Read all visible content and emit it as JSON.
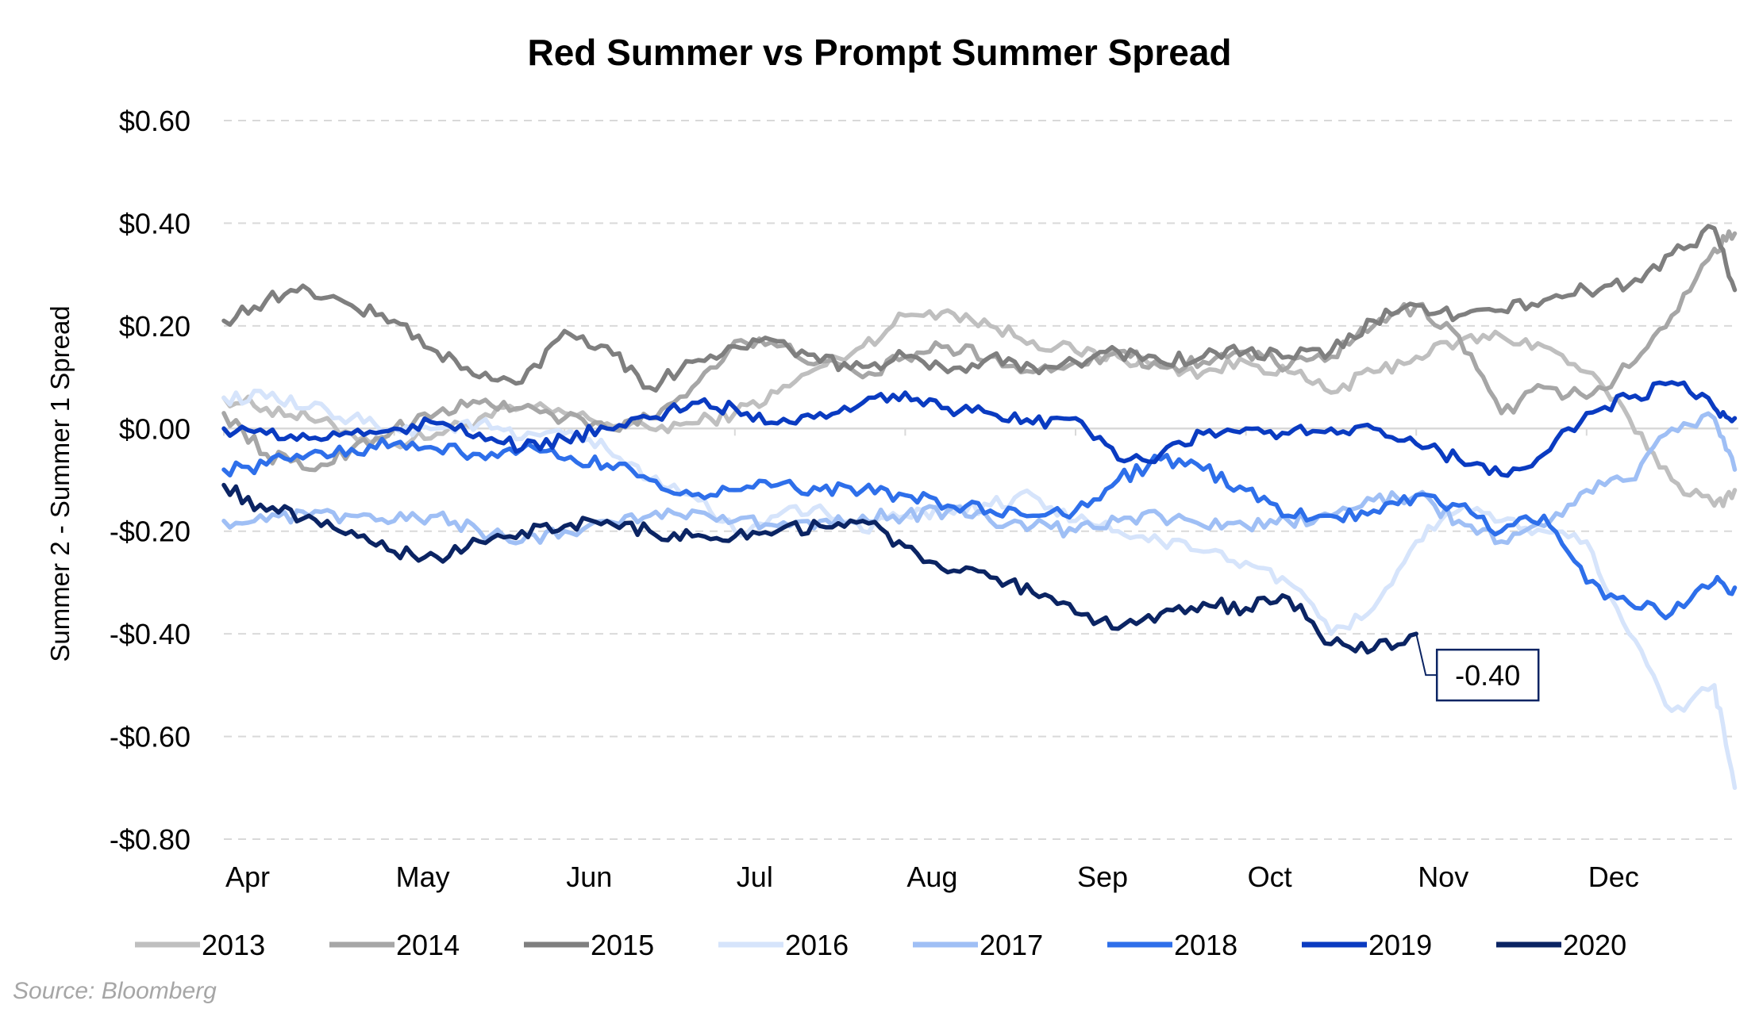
{
  "chart_data": {
    "type": "line",
    "title": "Red Summer vs Prompt Summer Spread",
    "ylabel": "Summer 2 - Summer 1 Spread",
    "xlabel": "",
    "x_tick_labels": [
      "Apr",
      "May",
      "Jun",
      "Jul",
      "Aug",
      "Sep",
      "Oct",
      "Nov",
      "Dec"
    ],
    "y_tick_labels": [
      "$0.60",
      "$0.40",
      "$0.20",
      "$0.00",
      "-$0.20",
      "-$0.40",
      "-$0.60",
      "-$0.80"
    ],
    "y_tick_values": [
      0.6,
      0.4,
      0.2,
      0.0,
      -0.2,
      -0.4,
      -0.6,
      -0.8
    ],
    "ylim": [
      -0.8,
      0.6
    ],
    "x_axis_months": [
      "Apr",
      "May",
      "Jun",
      "Jul",
      "Aug",
      "Sep",
      "Oct",
      "Nov",
      "Dec"
    ],
    "grid": "horizontal dashed",
    "legend_position": "bottom",
    "annotation": {
      "text": "-0.40",
      "series": "2020",
      "x_month": 7.0,
      "value": -0.4
    },
    "source": "Source: Bloomberg",
    "series": [
      {
        "name": "2013",
        "color": "#bfbfbf",
        "points": [
          [
            0,
            0.06
          ],
          [
            0.25,
            0.04
          ],
          [
            0.5,
            0.02
          ],
          [
            0.75,
            -0.01
          ],
          [
            1,
            -0.03
          ],
          [
            1.25,
            -0.01
          ],
          [
            1.5,
            0.02
          ],
          [
            1.75,
            0.04
          ],
          [
            2,
            0.03
          ],
          [
            2.25,
            0.01
          ],
          [
            2.5,
            0.0
          ],
          [
            2.75,
            0.01
          ],
          [
            3,
            0.03
          ],
          [
            3.25,
            0.07
          ],
          [
            3.5,
            0.12
          ],
          [
            3.75,
            0.16
          ],
          [
            4,
            0.22
          ],
          [
            4.25,
            0.23
          ],
          [
            4.5,
            0.2
          ],
          [
            4.75,
            0.17
          ],
          [
            5,
            0.15
          ],
          [
            5.25,
            0.14
          ],
          [
            5.5,
            0.12
          ],
          [
            5.75,
            0.11
          ],
          [
            6,
            0.13
          ],
          [
            6.25,
            0.11
          ],
          [
            6.5,
            0.07
          ],
          [
            6.75,
            0.11
          ],
          [
            7,
            0.14
          ],
          [
            7.25,
            0.17
          ],
          [
            7.5,
            0.18
          ],
          [
            7.75,
            0.16
          ],
          [
            8,
            0.11
          ],
          [
            8.25,
            0.02
          ],
          [
            8.5,
            -0.1
          ],
          [
            8.75,
            -0.15
          ],
          [
            8.87,
            -0.12
          ]
        ]
      },
      {
        "name": "2014",
        "color": "#a6a6a6",
        "points": [
          [
            0,
            0.03
          ],
          [
            0.25,
            -0.05
          ],
          [
            0.5,
            -0.08
          ],
          [
            0.75,
            -0.04
          ],
          [
            1,
            0.0
          ],
          [
            1.25,
            0.03
          ],
          [
            1.5,
            0.05
          ],
          [
            1.75,
            0.04
          ],
          [
            2,
            0.02
          ],
          [
            2.25,
            0.0
          ],
          [
            2.5,
            0.02
          ],
          [
            2.75,
            0.08
          ],
          [
            3,
            0.17
          ],
          [
            3.25,
            0.16
          ],
          [
            3.5,
            0.13
          ],
          [
            3.75,
            0.1
          ],
          [
            4,
            0.14
          ],
          [
            4.25,
            0.16
          ],
          [
            4.5,
            0.14
          ],
          [
            4.75,
            0.11
          ],
          [
            5,
            0.13
          ],
          [
            5.25,
            0.15
          ],
          [
            5.5,
            0.12
          ],
          [
            5.75,
            0.13
          ],
          [
            6,
            0.15
          ],
          [
            6.25,
            0.12
          ],
          [
            6.5,
            0.14
          ],
          [
            6.75,
            0.2
          ],
          [
            7,
            0.24
          ],
          [
            7.25,
            0.18
          ],
          [
            7.5,
            0.03
          ],
          [
            7.75,
            0.08
          ],
          [
            8,
            0.06
          ],
          [
            8.25,
            0.12
          ],
          [
            8.5,
            0.22
          ],
          [
            8.75,
            0.35
          ],
          [
            8.87,
            0.38
          ]
        ]
      },
      {
        "name": "2015",
        "color": "#7f7f7f",
        "points": [
          [
            0,
            0.21
          ],
          [
            0.25,
            0.25
          ],
          [
            0.5,
            0.27
          ],
          [
            0.75,
            0.24
          ],
          [
            1,
            0.21
          ],
          [
            1.25,
            0.15
          ],
          [
            1.5,
            0.1
          ],
          [
            1.75,
            0.09
          ],
          [
            2,
            0.19
          ],
          [
            2.25,
            0.16
          ],
          [
            2.5,
            0.08
          ],
          [
            2.75,
            0.13
          ],
          [
            3,
            0.16
          ],
          [
            3.25,
            0.17
          ],
          [
            3.5,
            0.13
          ],
          [
            3.75,
            0.12
          ],
          [
            4,
            0.14
          ],
          [
            4.25,
            0.11
          ],
          [
            4.5,
            0.14
          ],
          [
            4.75,
            0.12
          ],
          [
            5,
            0.13
          ],
          [
            5.25,
            0.15
          ],
          [
            5.5,
            0.13
          ],
          [
            5.75,
            0.14
          ],
          [
            6,
            0.15
          ],
          [
            6.25,
            0.14
          ],
          [
            6.5,
            0.15
          ],
          [
            6.75,
            0.21
          ],
          [
            7,
            0.24
          ],
          [
            7.25,
            0.22
          ],
          [
            7.5,
            0.23
          ],
          [
            7.75,
            0.25
          ],
          [
            8,
            0.27
          ],
          [
            8.25,
            0.28
          ],
          [
            8.5,
            0.34
          ],
          [
            8.75,
            0.39
          ],
          [
            8.87,
            0.27
          ]
        ]
      },
      {
        "name": "2016",
        "color": "#d6e4fb",
        "points": [
          [
            0,
            0.06
          ],
          [
            0.25,
            0.06
          ],
          [
            0.5,
            0.04
          ],
          [
            0.75,
            0.02
          ],
          [
            1,
            0.0
          ],
          [
            1.25,
            0.0
          ],
          [
            1.5,
            0.01
          ],
          [
            1.75,
            -0.02
          ],
          [
            2,
            -0.01
          ],
          [
            2.25,
            -0.04
          ],
          [
            2.5,
            -0.1
          ],
          [
            2.75,
            -0.13
          ],
          [
            3,
            -0.2
          ],
          [
            3.25,
            -0.17
          ],
          [
            3.5,
            -0.15
          ],
          [
            3.75,
            -0.2
          ],
          [
            4,
            -0.17
          ],
          [
            4.25,
            -0.16
          ],
          [
            4.5,
            -0.15
          ],
          [
            4.75,
            -0.13
          ],
          [
            5,
            -0.18
          ],
          [
            5.25,
            -0.2
          ],
          [
            5.5,
            -0.22
          ],
          [
            5.75,
            -0.24
          ],
          [
            6,
            -0.26
          ],
          [
            6.25,
            -0.3
          ],
          [
            6.5,
            -0.4
          ],
          [
            6.75,
            -0.35
          ],
          [
            7,
            -0.22
          ],
          [
            7.25,
            -0.16
          ],
          [
            7.5,
            -0.18
          ],
          [
            7.75,
            -0.2
          ],
          [
            8,
            -0.22
          ],
          [
            8.25,
            -0.4
          ],
          [
            8.5,
            -0.55
          ],
          [
            8.75,
            -0.5
          ],
          [
            8.87,
            -0.7
          ]
        ]
      },
      {
        "name": "2017",
        "color": "#9fbff5",
        "points": [
          [
            0,
            -0.18
          ],
          [
            0.25,
            -0.18
          ],
          [
            0.5,
            -0.17
          ],
          [
            0.75,
            -0.17
          ],
          [
            1,
            -0.18
          ],
          [
            1.25,
            -0.17
          ],
          [
            1.5,
            -0.2
          ],
          [
            1.75,
            -0.22
          ],
          [
            2,
            -0.2
          ],
          [
            2.25,
            -0.18
          ],
          [
            2.5,
            -0.17
          ],
          [
            2.75,
            -0.16
          ],
          [
            3,
            -0.18
          ],
          [
            3.25,
            -0.19
          ],
          [
            3.5,
            -0.18
          ],
          [
            3.75,
            -0.17
          ],
          [
            4,
            -0.17
          ],
          [
            4.25,
            -0.16
          ],
          [
            4.5,
            -0.18
          ],
          [
            4.75,
            -0.19
          ],
          [
            5,
            -0.2
          ],
          [
            5.25,
            -0.18
          ],
          [
            5.5,
            -0.17
          ],
          [
            5.75,
            -0.19
          ],
          [
            6,
            -0.19
          ],
          [
            6.25,
            -0.18
          ],
          [
            6.5,
            -0.17
          ],
          [
            6.75,
            -0.14
          ],
          [
            7,
            -0.13
          ],
          [
            7.25,
            -0.18
          ],
          [
            7.5,
            -0.22
          ],
          [
            7.75,
            -0.19
          ],
          [
            8,
            -0.12
          ],
          [
            8.25,
            -0.1
          ],
          [
            8.5,
            0.0
          ],
          [
            8.75,
            0.02
          ],
          [
            8.87,
            -0.08
          ]
        ]
      },
      {
        "name": "2018",
        "color": "#2e6fea",
        "points": [
          [
            0,
            -0.08
          ],
          [
            0.25,
            -0.07
          ],
          [
            0.5,
            -0.05
          ],
          [
            0.75,
            -0.04
          ],
          [
            1,
            -0.03
          ],
          [
            1.25,
            -0.04
          ],
          [
            1.5,
            -0.05
          ],
          [
            1.75,
            -0.04
          ],
          [
            2,
            -0.06
          ],
          [
            2.25,
            -0.07
          ],
          [
            2.5,
            -0.1
          ],
          [
            2.75,
            -0.13
          ],
          [
            3,
            -0.12
          ],
          [
            3.25,
            -0.11
          ],
          [
            3.5,
            -0.12
          ],
          [
            3.75,
            -0.12
          ],
          [
            4,
            -0.13
          ],
          [
            4.25,
            -0.15
          ],
          [
            4.5,
            -0.16
          ],
          [
            4.75,
            -0.17
          ],
          [
            5,
            -0.16
          ],
          [
            5.25,
            -0.1
          ],
          [
            5.5,
            -0.06
          ],
          [
            5.75,
            -0.08
          ],
          [
            6,
            -0.12
          ],
          [
            6.25,
            -0.17
          ],
          [
            6.5,
            -0.17
          ],
          [
            6.75,
            -0.16
          ],
          [
            7,
            -0.13
          ],
          [
            7.25,
            -0.15
          ],
          [
            7.5,
            -0.2
          ],
          [
            7.75,
            -0.17
          ],
          [
            8,
            -0.3
          ],
          [
            8.25,
            -0.34
          ],
          [
            8.5,
            -0.36
          ],
          [
            8.75,
            -0.3
          ],
          [
            8.87,
            -0.31
          ]
        ]
      },
      {
        "name": "2019",
        "color": "#0a3bc1",
        "points": [
          [
            0,
            0.0
          ],
          [
            0.25,
            -0.01
          ],
          [
            0.5,
            -0.02
          ],
          [
            0.75,
            -0.01
          ],
          [
            1,
            0.0
          ],
          [
            1.25,
            0.01
          ],
          [
            1.5,
            -0.01
          ],
          [
            1.75,
            -0.04
          ],
          [
            2,
            -0.02
          ],
          [
            2.25,
            0.0
          ],
          [
            2.5,
            0.02
          ],
          [
            2.75,
            0.05
          ],
          [
            3,
            0.04
          ],
          [
            3.25,
            0.01
          ],
          [
            3.5,
            0.03
          ],
          [
            3.75,
            0.05
          ],
          [
            4,
            0.07
          ],
          [
            4.25,
            0.04
          ],
          [
            4.5,
            0.03
          ],
          [
            4.75,
            0.01
          ],
          [
            5,
            0.02
          ],
          [
            5.25,
            -0.06
          ],
          [
            5.5,
            -0.05
          ],
          [
            5.75,
            -0.01
          ],
          [
            6,
            0.0
          ],
          [
            6.25,
            -0.01
          ],
          [
            6.5,
            0.0
          ],
          [
            6.75,
            0.0
          ],
          [
            7,
            -0.03
          ],
          [
            7.25,
            -0.06
          ],
          [
            7.5,
            -0.09
          ],
          [
            7.75,
            -0.05
          ],
          [
            8,
            0.03
          ],
          [
            8.25,
            0.06
          ],
          [
            8.5,
            0.09
          ],
          [
            8.75,
            0.04
          ],
          [
            8.87,
            0.02
          ]
        ]
      },
      {
        "name": "2020",
        "color": "#0b2463",
        "points": [
          [
            0,
            -0.11
          ],
          [
            0.25,
            -0.16
          ],
          [
            0.5,
            -0.17
          ],
          [
            0.75,
            -0.2
          ],
          [
            1,
            -0.24
          ],
          [
            1.25,
            -0.25
          ],
          [
            1.5,
            -0.22
          ],
          [
            1.75,
            -0.2
          ],
          [
            2,
            -0.19
          ],
          [
            2.25,
            -0.18
          ],
          [
            2.5,
            -0.2
          ],
          [
            2.75,
            -0.21
          ],
          [
            3,
            -0.21
          ],
          [
            3.25,
            -0.2
          ],
          [
            3.5,
            -0.19
          ],
          [
            3.75,
            -0.18
          ],
          [
            4,
            -0.23
          ],
          [
            4.25,
            -0.28
          ],
          [
            4.5,
            -0.29
          ],
          [
            4.75,
            -0.32
          ],
          [
            5,
            -0.36
          ],
          [
            5.25,
            -0.39
          ],
          [
            5.5,
            -0.36
          ],
          [
            5.75,
            -0.34
          ],
          [
            6,
            -0.35
          ],
          [
            6.25,
            -0.33
          ],
          [
            6.5,
            -0.42
          ],
          [
            6.75,
            -0.43
          ],
          [
            7,
            -0.4
          ]
        ]
      }
    ]
  }
}
